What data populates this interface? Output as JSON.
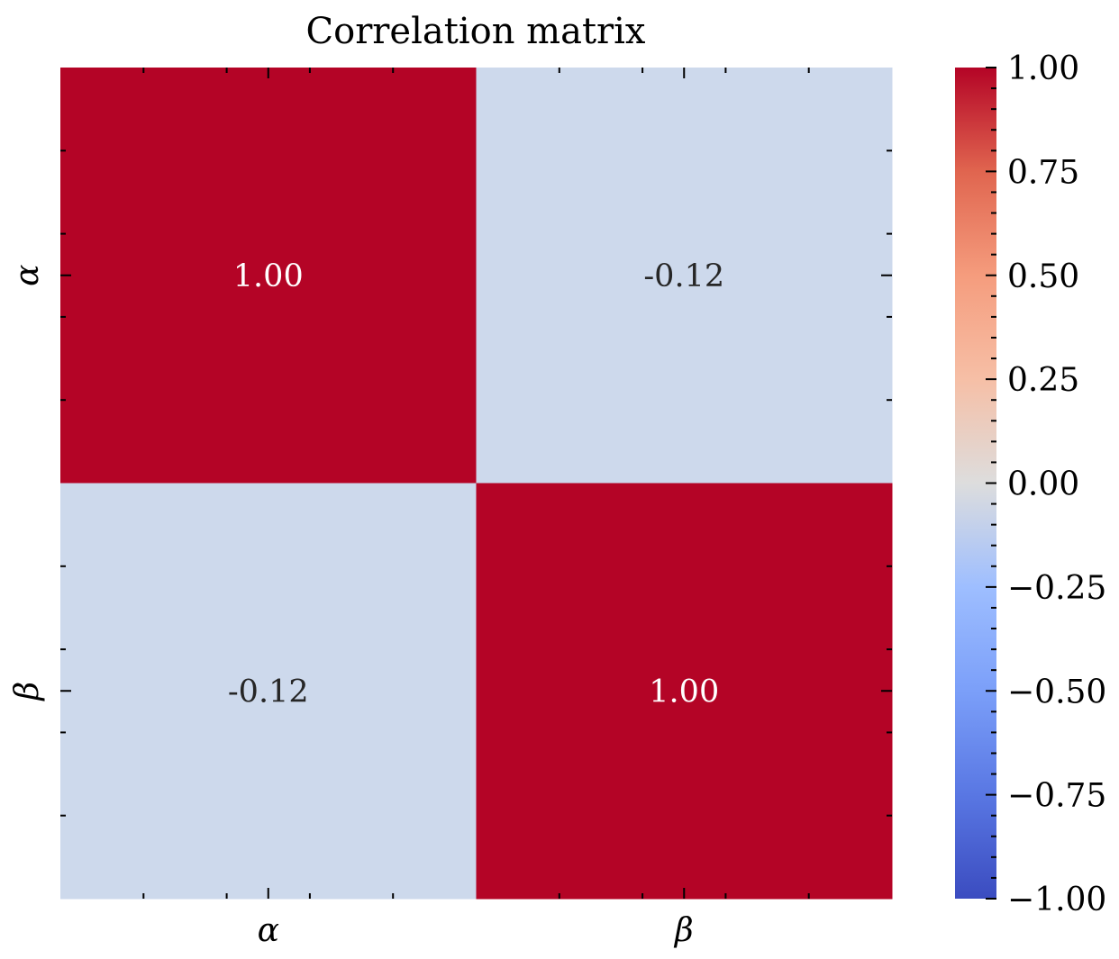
{
  "chart_data": {
    "type": "heatmap",
    "title": "Correlation matrix",
    "xlabel": "",
    "ylabel": "",
    "x_categories": [
      "α",
      "β"
    ],
    "y_categories": [
      "α",
      "β"
    ],
    "values": [
      [
        1.0,
        -0.12
      ],
      [
        -0.12,
        1.0
      ]
    ],
    "cell_labels": [
      [
        "1.00",
        "-0.12"
      ],
      [
        "-0.12",
        "1.00"
      ]
    ],
    "colorscale": "coolwarm",
    "colors": {
      "high": "#b40426",
      "neutral": "#dddddd",
      "low": "#3b4cc0",
      "cell_minus_0_12": "#cdd9ec"
    },
    "colorbar": {
      "vmin": -1.0,
      "vmax": 1.0,
      "ticks": [
        1.0,
        0.75,
        0.5,
        0.25,
        0.0,
        -0.25,
        -0.5,
        -0.75,
        -1.0
      ],
      "tick_labels": [
        "1.00",
        "0.75",
        "0.50",
        "0.25",
        "0.00",
        "−0.25",
        "−0.50",
        "−0.75",
        "−1.00"
      ]
    },
    "grid": false
  }
}
